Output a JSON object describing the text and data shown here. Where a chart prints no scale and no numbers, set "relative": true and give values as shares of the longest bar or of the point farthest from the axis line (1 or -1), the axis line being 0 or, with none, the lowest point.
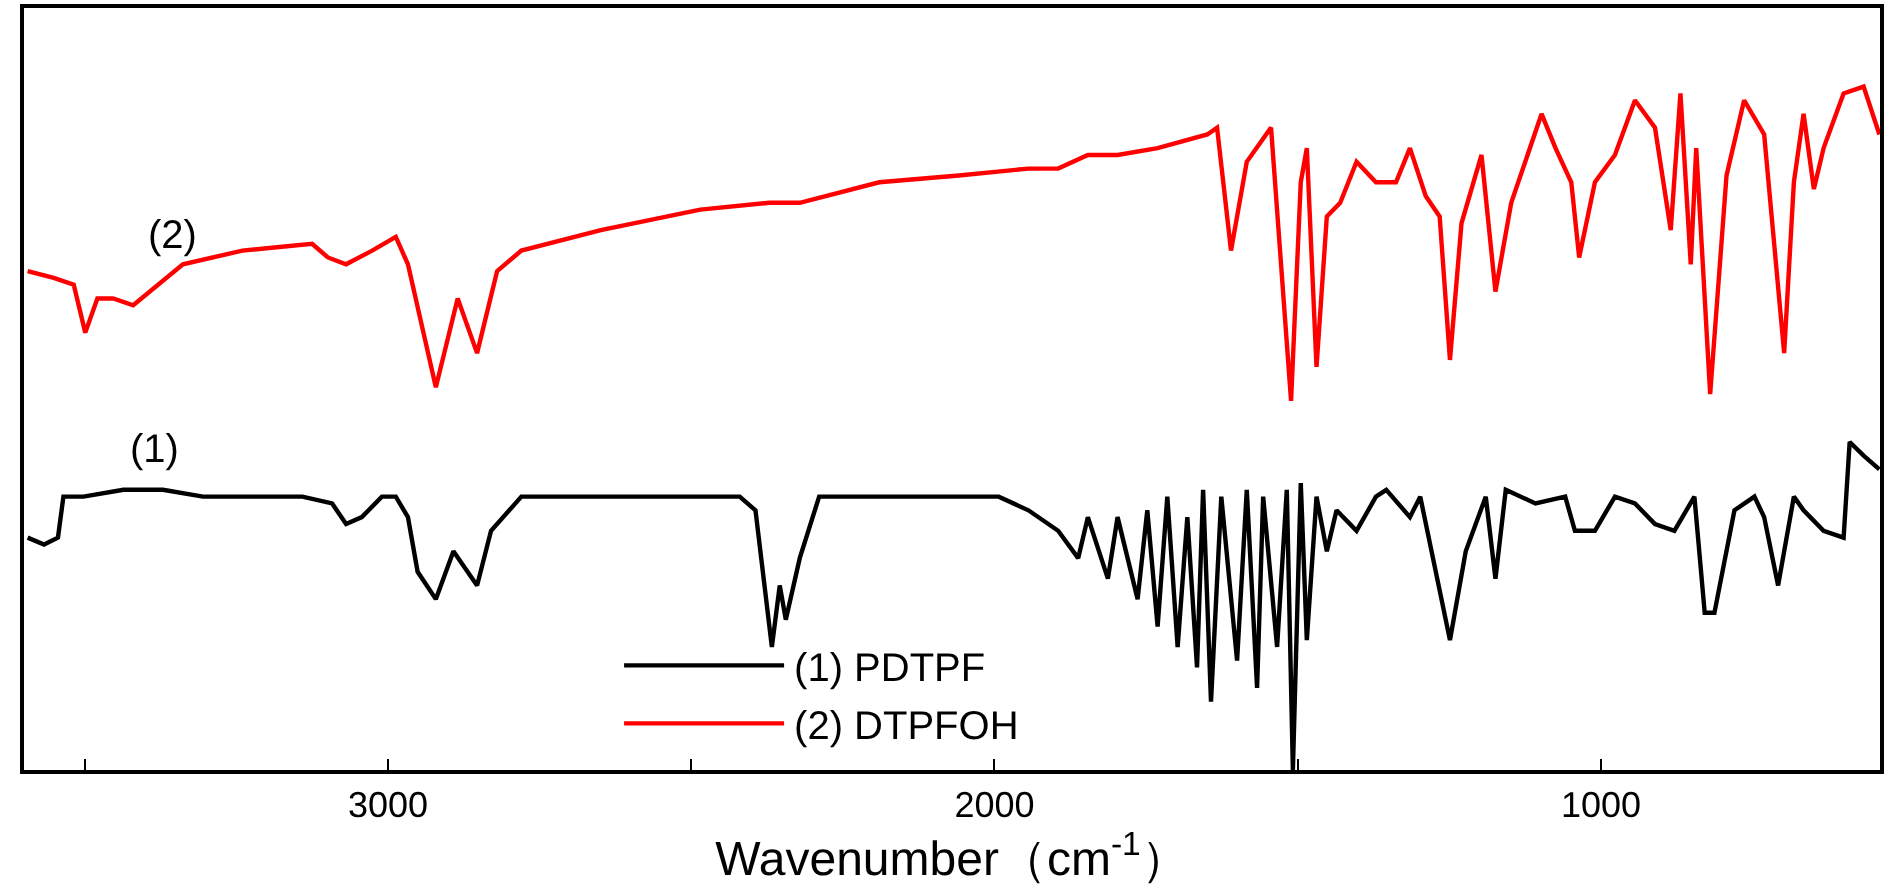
{
  "chart_data": {
    "type": "line",
    "relative": true,
    "xlabel": "Wavenumber（cm$^{-1}$）",
    "xlim": [
      3600,
      540
    ],
    "xticks": [
      {
        "value": 3500,
        "label": null
      },
      3000,
      {
        "value": 2500,
        "label": null
      },
      2000,
      {
        "value": 1500,
        "label": null
      },
      1000
    ],
    "legend": "bottom",
    "marker": "none",
    "line_style": "solid",
    "annotations": [
      "(2)",
      "(1)"
    ],
    "series": [
      {
        "name": "(1) PDTPF",
        "color": "#000000",
        "x": [
          3594,
          3567,
          3544,
          3535,
          3502,
          3436,
          3371,
          3305,
          3141,
          3092,
          3069,
          3043,
          3010,
          2987,
          2967,
          2951,
          2921,
          2892,
          2853,
          2830,
          2780,
          2649,
          2420,
          2394,
          2367,
          2354,
          2344,
          2321,
          2289,
          2092,
          2059,
          1993,
          1944,
          1895,
          1862,
          1846,
          1813,
          1797,
          1764,
          1748,
          1731,
          1715,
          1698,
          1682,
          1666,
          1656,
          1643,
          1626,
          1600,
          1584,
          1567,
          1557,
          1534,
          1518,
          1508,
          1495,
          1485,
          1469,
          1452,
          1436,
          1403,
          1371,
          1354,
          1315,
          1298,
          1249,
          1223,
          1190,
          1174,
          1157,
          1108,
          1059,
          1043,
          1010,
          977,
          944,
          911,
          879,
          846,
          829,
          813,
          780,
          747,
          731,
          708,
          682,
          666,
          633,
          600,
          590,
          567,
          541
        ],
        "values": [
          0.34,
          0.33,
          0.34,
          0.4,
          0.4,
          0.41,
          0.41,
          0.4,
          0.4,
          0.39,
          0.36,
          0.37,
          0.4,
          0.4,
          0.37,
          0.29,
          0.25,
          0.32,
          0.27,
          0.35,
          0.4,
          0.4,
          0.4,
          0.38,
          0.18,
          0.27,
          0.22,
          0.31,
          0.4,
          0.4,
          0.4,
          0.4,
          0.38,
          0.35,
          0.31,
          0.37,
          0.28,
          0.37,
          0.25,
          0.38,
          0.21,
          0.4,
          0.18,
          0.37,
          0.15,
          0.41,
          0.1,
          0.4,
          0.16,
          0.41,
          0.12,
          0.4,
          0.18,
          0.41,
          0,
          0.42,
          0.19,
          0.4,
          0.32,
          0.38,
          0.35,
          0.4,
          0.41,
          0.37,
          0.4,
          0.19,
          0.32,
          0.4,
          0.28,
          0.41,
          0.39,
          0.4,
          0.35,
          0.35,
          0.4,
          0.39,
          0.36,
          0.35,
          0.4,
          0.23,
          0.23,
          0.38,
          0.4,
          0.37,
          0.27,
          0.4,
          0.38,
          0.35,
          0.34,
          0.48,
          0.46,
          0.44
        ]
      },
      {
        "name": "(2) DTPFOH",
        "color": "#ff0000",
        "x": [
          3594,
          3551,
          3518,
          3499,
          3479,
          3453,
          3420,
          3338,
          3240,
          3125,
          3099,
          3069,
          3026,
          2987,
          2967,
          2944,
          2921,
          2885,
          2853,
          2820,
          2780,
          2649,
          2485,
          2371,
          2338,
          2321,
          2190,
          2059,
          1944,
          1895,
          1846,
          1797,
          1731,
          1649,
          1633,
          1610,
          1584,
          1544,
          1511,
          1495,
          1485,
          1469,
          1452,
          1430,
          1403,
          1371,
          1338,
          1315,
          1289,
          1266,
          1249,
          1230,
          1197,
          1174,
          1148,
          1098,
          1075,
          1049,
          1036,
          1010,
          977,
          944,
          911,
          885,
          869,
          852,
          843,
          820,
          793,
          764,
          731,
          698,
          682,
          666,
          649,
          633,
          600,
          567,
          541
        ],
        "values": [
          0.73,
          0.72,
          0.71,
          0.64,
          0.69,
          0.69,
          0.68,
          0.74,
          0.76,
          0.77,
          0.75,
          0.74,
          0.76,
          0.78,
          0.74,
          0.65,
          0.56,
          0.69,
          0.61,
          0.73,
          0.76,
          0.79,
          0.82,
          0.83,
          0.83,
          0.83,
          0.86,
          0.87,
          0.88,
          0.88,
          0.9,
          0.9,
          0.91,
          0.93,
          0.94,
          0.76,
          0.89,
          0.94,
          0.54,
          0.86,
          0.91,
          0.59,
          0.81,
          0.83,
          0.89,
          0.86,
          0.86,
          0.91,
          0.84,
          0.81,
          0.6,
          0.8,
          0.9,
          0.7,
          0.83,
          0.96,
          0.91,
          0.86,
          0.75,
          0.86,
          0.9,
          0.98,
          0.94,
          0.79,
          0.99,
          0.74,
          0.91,
          0.55,
          0.87,
          0.98,
          0.93,
          0.61,
          0.86,
          0.96,
          0.85,
          0.91,
          0.99,
          1.0,
          0.93
        ]
      }
    ]
  }
}
